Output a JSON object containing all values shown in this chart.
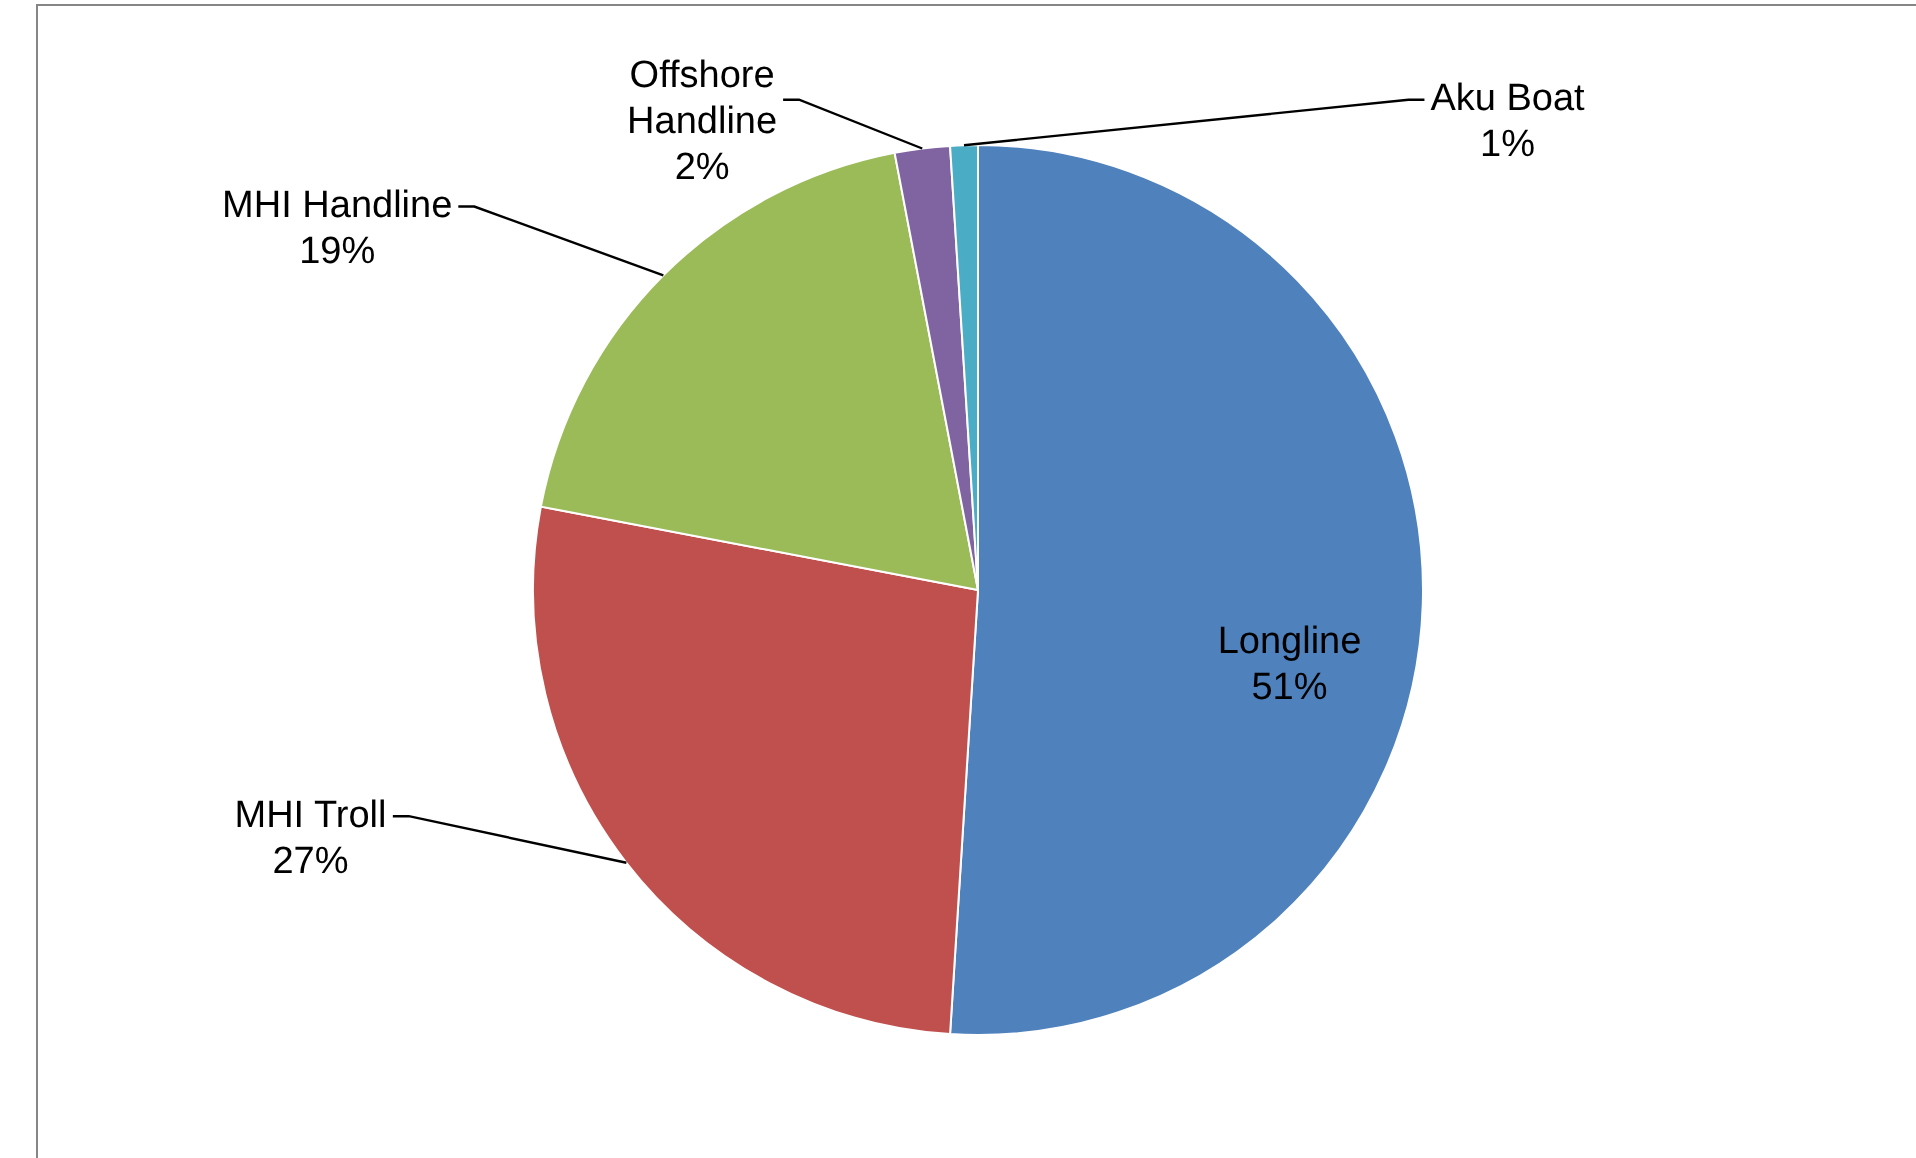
{
  "chart_data": {
    "type": "pie",
    "categories": [
      "Longline",
      "MHI Troll",
      "MHI Handline",
      "Offshore Handline",
      "Aku Boat"
    ],
    "values": [
      51,
      27,
      19,
      2,
      1
    ],
    "colors": [
      "#4f81bd",
      "#c0504d",
      "#9bbb59",
      "#8064a2",
      "#4bacc6"
    ],
    "value_labels": [
      "51%",
      "27%",
      "19%",
      "2%",
      "1%"
    ],
    "legend": false
  }
}
